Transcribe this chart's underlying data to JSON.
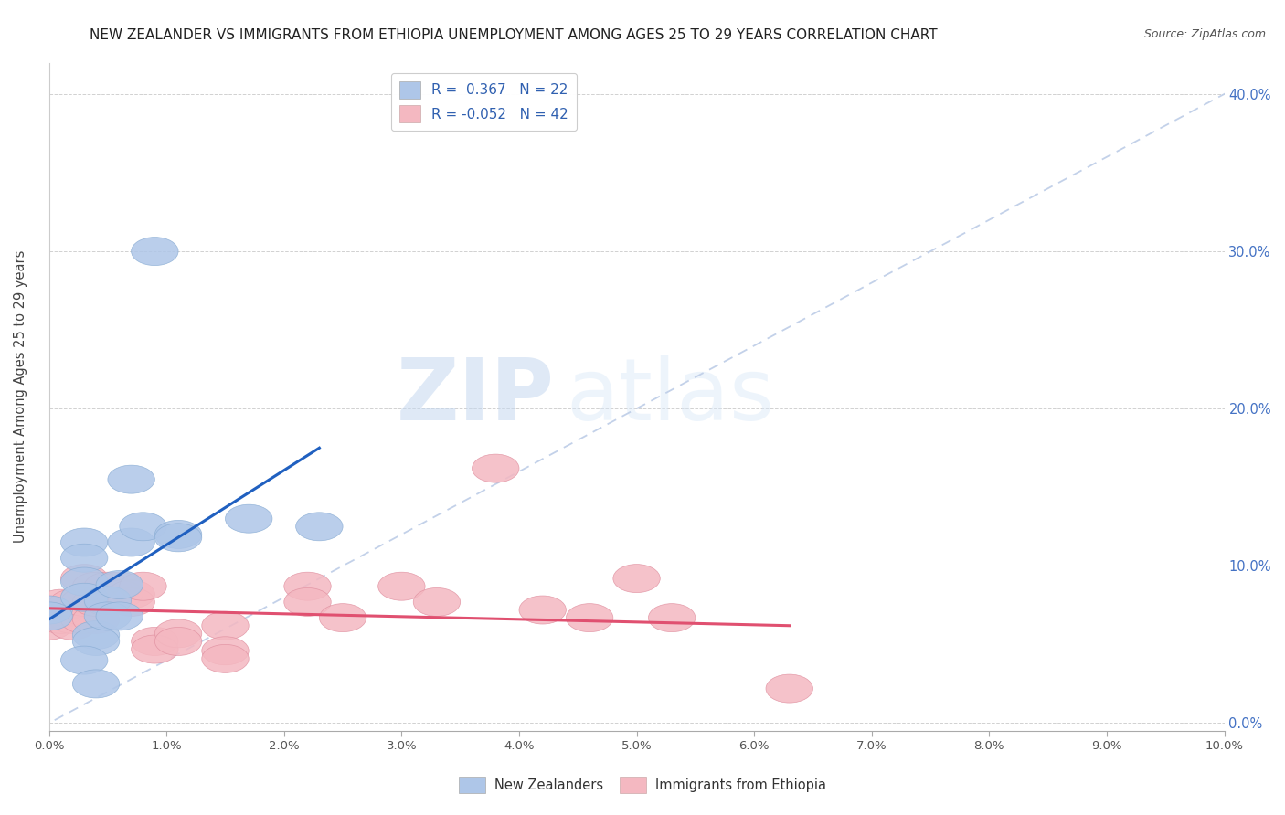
{
  "title": "NEW ZEALANDER VS IMMIGRANTS FROM ETHIOPIA UNEMPLOYMENT AMONG AGES 25 TO 29 YEARS CORRELATION CHART",
  "source": "Source: ZipAtlas.com",
  "ylabel": "Unemployment Among Ages 25 to 29 years",
  "xlabel": "",
  "watermark_zip": "ZIP",
  "watermark_atlas": "atlas",
  "xlim": [
    0.0,
    0.1
  ],
  "ylim": [
    -0.005,
    0.42
  ],
  "x_ticks": [
    0.0,
    0.01,
    0.02,
    0.03,
    0.04,
    0.05,
    0.06,
    0.07,
    0.08,
    0.09,
    0.1
  ],
  "y_ticks": [
    0.0,
    0.1,
    0.2,
    0.3,
    0.4
  ],
  "nz_R": 0.367,
  "nz_N": 22,
  "eth_R": -0.052,
  "eth_N": 42,
  "nz_color": "#aec6e8",
  "eth_color": "#f4b8c1",
  "nz_edge_color": "#8aadd4",
  "eth_edge_color": "#e090a0",
  "nz_line_color": "#2060c0",
  "eth_line_color": "#e05070",
  "diagonal_color": "#c0cfe8",
  "nz_points": [
    [
      0.0,
      0.072
    ],
    [
      0.0,
      0.068
    ],
    [
      0.003,
      0.115
    ],
    [
      0.003,
      0.105
    ],
    [
      0.003,
      0.09
    ],
    [
      0.003,
      0.08
    ],
    [
      0.004,
      0.056
    ],
    [
      0.004,
      0.052
    ],
    [
      0.005,
      0.078
    ],
    [
      0.005,
      0.068
    ],
    [
      0.006,
      0.088
    ],
    [
      0.006,
      0.068
    ],
    [
      0.007,
      0.155
    ],
    [
      0.007,
      0.115
    ],
    [
      0.008,
      0.125
    ],
    [
      0.009,
      0.3
    ],
    [
      0.011,
      0.12
    ],
    [
      0.011,
      0.118
    ],
    [
      0.017,
      0.13
    ],
    [
      0.023,
      0.125
    ],
    [
      0.003,
      0.04
    ],
    [
      0.004,
      0.025
    ]
  ],
  "eth_points": [
    [
      0.0,
      0.072
    ],
    [
      0.0,
      0.068
    ],
    [
      0.0,
      0.062
    ],
    [
      0.001,
      0.076
    ],
    [
      0.001,
      0.071
    ],
    [
      0.001,
      0.066
    ],
    [
      0.002,
      0.071
    ],
    [
      0.002,
      0.066
    ],
    [
      0.002,
      0.062
    ],
    [
      0.002,
      0.076
    ],
    [
      0.003,
      0.071
    ],
    [
      0.003,
      0.066
    ],
    [
      0.003,
      0.092
    ],
    [
      0.003,
      0.077
    ],
    [
      0.004,
      0.066
    ],
    [
      0.004,
      0.087
    ],
    [
      0.004,
      0.077
    ],
    [
      0.005,
      0.087
    ],
    [
      0.005,
      0.077
    ],
    [
      0.006,
      0.087
    ],
    [
      0.006,
      0.082
    ],
    [
      0.007,
      0.082
    ],
    [
      0.007,
      0.077
    ],
    [
      0.008,
      0.087
    ],
    [
      0.009,
      0.052
    ],
    [
      0.009,
      0.047
    ],
    [
      0.011,
      0.057
    ],
    [
      0.011,
      0.052
    ],
    [
      0.015,
      0.062
    ],
    [
      0.015,
      0.046
    ],
    [
      0.015,
      0.041
    ],
    [
      0.022,
      0.087
    ],
    [
      0.022,
      0.077
    ],
    [
      0.025,
      0.067
    ],
    [
      0.03,
      0.087
    ],
    [
      0.033,
      0.077
    ],
    [
      0.038,
      0.162
    ],
    [
      0.042,
      0.072
    ],
    [
      0.046,
      0.067
    ],
    [
      0.05,
      0.092
    ],
    [
      0.053,
      0.067
    ],
    [
      0.063,
      0.022
    ]
  ],
  "nz_line_x": [
    0.0,
    0.023
  ],
  "nz_line_y": [
    0.066,
    0.175
  ],
  "eth_line_x": [
    0.0,
    0.063
  ],
  "eth_line_y": [
    0.073,
    0.062
  ]
}
